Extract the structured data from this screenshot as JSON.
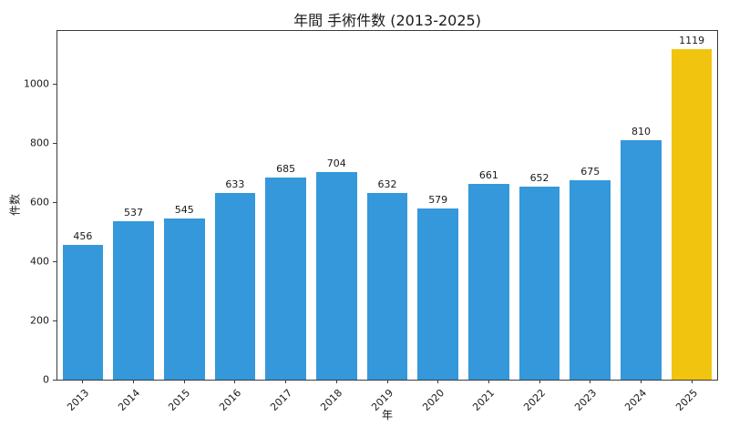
{
  "chart_data": {
    "type": "bar",
    "title": "年間 手術件数 (2013-2025)",
    "xlabel": "年",
    "ylabel": "件数",
    "categories": [
      "2013",
      "2014",
      "2015",
      "2016",
      "2017",
      "2018",
      "2019",
      "2020",
      "2021",
      "2022",
      "2023",
      "2024",
      "2025"
    ],
    "values": [
      456,
      537,
      545,
      633,
      685,
      704,
      632,
      579,
      661,
      652,
      675,
      810,
      1119
    ],
    "value_labels_shown": true,
    "yticks": [
      0,
      200,
      400,
      600,
      800,
      1000
    ],
    "ylim": [
      0,
      1180
    ],
    "bar_color": "#3498db",
    "highlight_color": "#f1c40f",
    "highlight_category": "2025",
    "grid": false,
    "legend_position": "none",
    "bar_width_fraction": 0.8
  }
}
